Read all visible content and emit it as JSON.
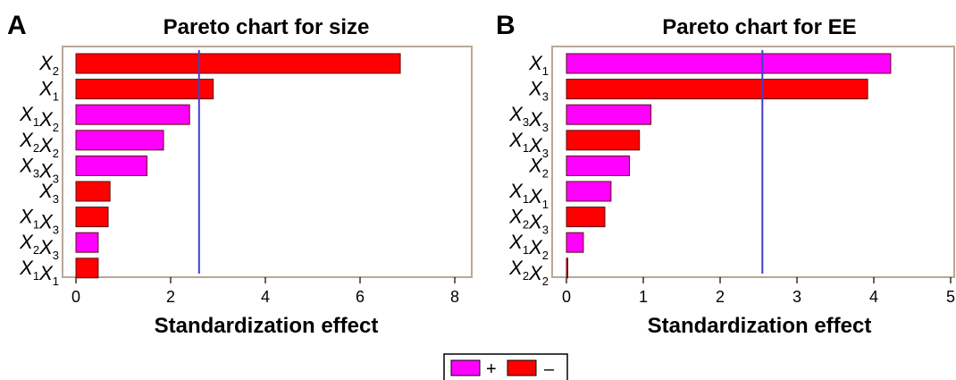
{
  "legend": {
    "positive_label": "+",
    "negative_label": "–",
    "positive_color": "#ff00ff",
    "negative_color": "#ff0000"
  },
  "chart_data": [
    {
      "type": "bar",
      "orientation": "horizontal",
      "panel": "A",
      "title": "Pareto chart for size",
      "xlabel": "Standardization effect",
      "xlim": [
        0,
        8
      ],
      "xticks": [
        0,
        2,
        4,
        6,
        8
      ],
      "reference_line": 2.6,
      "categories": [
        "X2",
        "X1",
        "X1X2",
        "X2X2",
        "X3X3",
        "X3",
        "X1X3",
        "X2X3",
        "X1X1"
      ],
      "values": [
        6.85,
        2.9,
        2.4,
        1.85,
        1.5,
        0.72,
        0.68,
        0.47,
        0.47
      ],
      "signs": [
        "-",
        "-",
        "+",
        "+",
        "+",
        "-",
        "-",
        "+",
        "-"
      ]
    },
    {
      "type": "bar",
      "orientation": "horizontal",
      "panel": "B",
      "title": "Pareto chart for EE",
      "xlabel": "Standardization effect",
      "xlim": [
        0,
        5
      ],
      "xticks": [
        0,
        1,
        2,
        3,
        4,
        5
      ],
      "reference_line": 2.55,
      "categories": [
        "X1",
        "X3",
        "X3X3",
        "X1X3",
        "X2",
        "X1X1",
        "X2X3",
        "X1X2",
        "X2X2"
      ],
      "values": [
        4.22,
        3.92,
        1.1,
        0.95,
        0.82,
        0.58,
        0.5,
        0.22,
        0.01
      ],
      "signs": [
        "+",
        "-",
        "+",
        "-",
        "+",
        "+",
        "-",
        "+",
        "-"
      ]
    }
  ]
}
